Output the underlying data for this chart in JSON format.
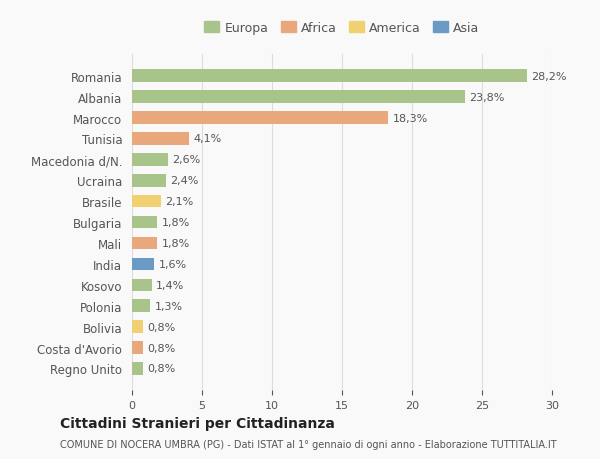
{
  "countries": [
    "Romania",
    "Albania",
    "Marocco",
    "Tunisia",
    "Macedonia d/N.",
    "Ucraina",
    "Brasile",
    "Bulgaria",
    "Mali",
    "India",
    "Kosovo",
    "Polonia",
    "Bolivia",
    "Costa d'Avorio",
    "Regno Unito"
  ],
  "values": [
    28.2,
    23.8,
    18.3,
    4.1,
    2.6,
    2.4,
    2.1,
    1.8,
    1.8,
    1.6,
    1.4,
    1.3,
    0.8,
    0.8,
    0.8
  ],
  "labels": [
    "28,2%",
    "23,8%",
    "18,3%",
    "4,1%",
    "2,6%",
    "2,4%",
    "2,1%",
    "1,8%",
    "1,8%",
    "1,6%",
    "1,4%",
    "1,3%",
    "0,8%",
    "0,8%",
    "0,8%"
  ],
  "continents": [
    "Europa",
    "Europa",
    "Africa",
    "Africa",
    "Europa",
    "Europa",
    "America",
    "Europa",
    "Africa",
    "Asia",
    "Europa",
    "Europa",
    "America",
    "Africa",
    "Europa"
  ],
  "colors": {
    "Europa": "#a8c48a",
    "Africa": "#e8a87c",
    "America": "#f0d070",
    "Asia": "#6b9bc4"
  },
  "legend_order": [
    "Europa",
    "Africa",
    "America",
    "Asia"
  ],
  "title": "Cittadini Stranieri per Cittadinanza",
  "subtitle": "COMUNE DI NOCERA UMBRA (PG) - Dati ISTAT al 1° gennaio di ogni anno - Elaborazione TUTTITALIA.IT",
  "xlim": [
    0,
    30
  ],
  "xticks": [
    0,
    5,
    10,
    15,
    20,
    25,
    30
  ],
  "bg_color": "#f9f9f9",
  "grid_color": "#dddddd",
  "text_color": "#555555"
}
